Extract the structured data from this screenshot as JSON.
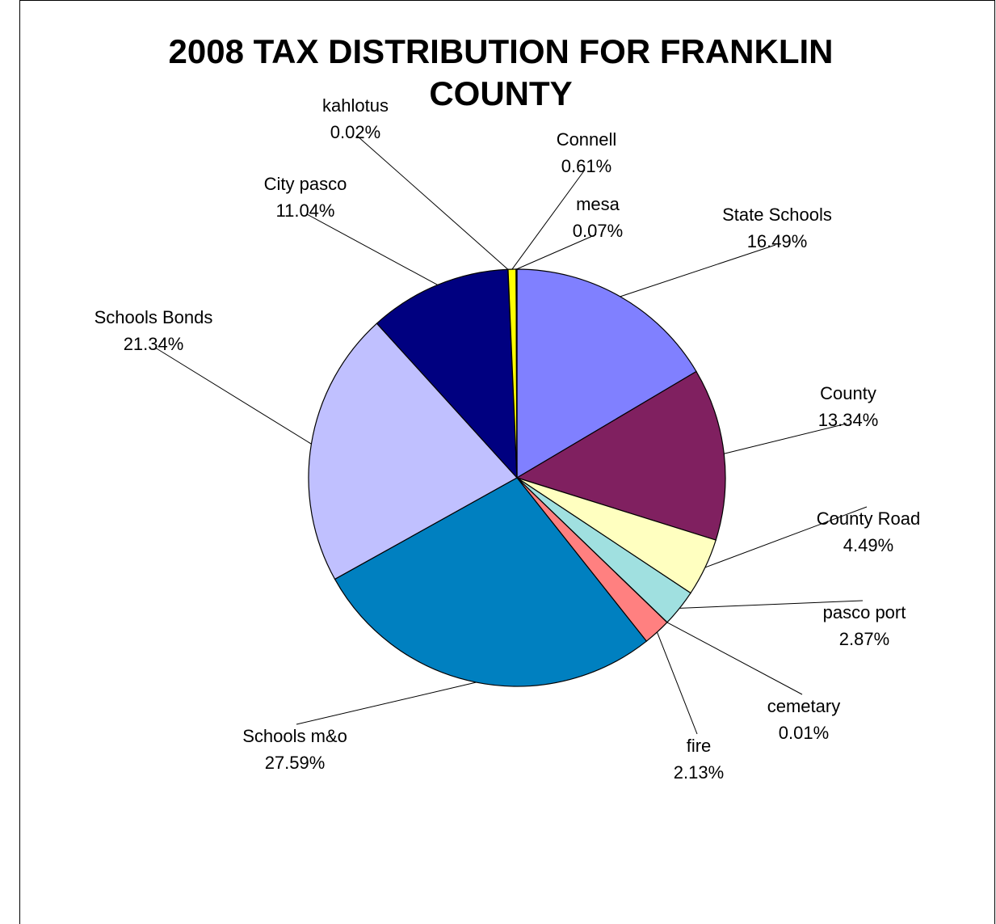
{
  "chart_data": {
    "type": "pie",
    "title": "2008 TAX DISTRIBUTION FOR FRANKLIN COUNTY",
    "slices": [
      {
        "label": "State Schools",
        "value": 16.49,
        "percent_label": "16.49%",
        "color": "#8080ff"
      },
      {
        "label": "County",
        "value": 13.34,
        "percent_label": "13.34%",
        "color": "#802060"
      },
      {
        "label": "County Road",
        "value": 4.49,
        "percent_label": "4.49%",
        "color": "#ffffc0"
      },
      {
        "label": "pasco port",
        "value": 2.87,
        "percent_label": "2.87%",
        "color": "#a0e0e0"
      },
      {
        "label": "cemetary",
        "value": 0.01,
        "percent_label": "0.01%",
        "color": "#600080"
      },
      {
        "label": "fire",
        "value": 2.13,
        "percent_label": "2.13%",
        "color": "#ff8080"
      },
      {
        "label": "Schools m&o",
        "value": 27.59,
        "percent_label": "27.59%",
        "color": "#0080c0"
      },
      {
        "label": "Schools Bonds",
        "value": 21.34,
        "percent_label": "21.34%",
        "color": "#c0c0ff"
      },
      {
        "label": "City pasco",
        "value": 11.04,
        "percent_label": "11.04%",
        "color": "#000080"
      },
      {
        "label": "kahlotus",
        "value": 0.02,
        "percent_label": "0.02%",
        "color": "#ff00ff"
      },
      {
        "label": "Connell",
        "value": 0.61,
        "percent_label": "0.61%",
        "color": "#ffff00"
      },
      {
        "label": "mesa",
        "value": 0.07,
        "percent_label": "0.07%",
        "color": "#00ffff"
      }
    ]
  }
}
